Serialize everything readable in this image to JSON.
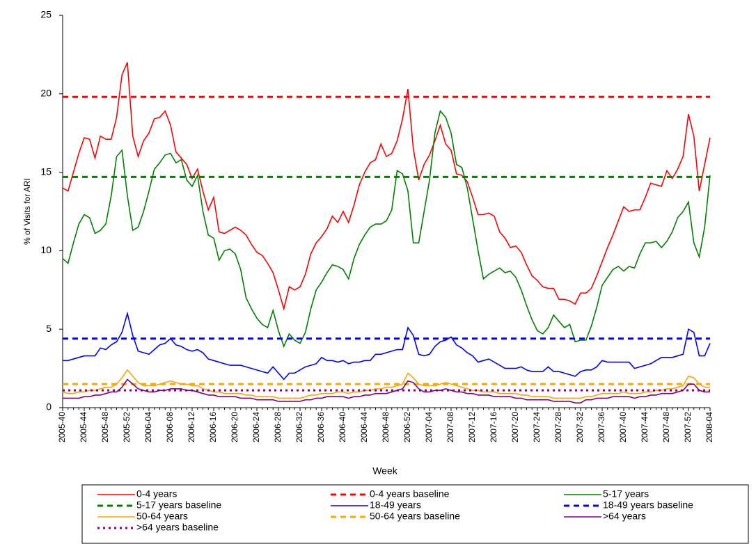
{
  "chart_data": {
    "type": "line",
    "y_label": "% of Visits for ARI",
    "x_label": "Week",
    "ylim": [
      0,
      25
    ],
    "yticks": [
      0,
      5,
      10,
      15,
      20,
      25
    ],
    "grid": false,
    "legend": "bottom",
    "categories": [
      "2005-40",
      null,
      null,
      null,
      "2005-44",
      null,
      null,
      null,
      "2005-48",
      null,
      null,
      null,
      "2005-52",
      null,
      null,
      null,
      "2006-04",
      null,
      null,
      null,
      "2006-08",
      null,
      null,
      null,
      "2006-12",
      null,
      null,
      null,
      "2006-16",
      null,
      null,
      null,
      "2006-20",
      null,
      null,
      null,
      "2006-24",
      null,
      null,
      null,
      "2006-28",
      null,
      null,
      null,
      "2006-32",
      null,
      null,
      null,
      "2006-36",
      null,
      null,
      null,
      "2006-40",
      null,
      null,
      null,
      "2006-44",
      null,
      null,
      null,
      "2006-48",
      null,
      null,
      null,
      "2006-52",
      null,
      null,
      null,
      "2007-04",
      null,
      null,
      null,
      "2007-08",
      null,
      null,
      null,
      "2007-12",
      null,
      null,
      null,
      "2007-16",
      null,
      null,
      null,
      "2007-20",
      null,
      null,
      null,
      "2007-24",
      null,
      null,
      null,
      "2007-28",
      null,
      null,
      null,
      "2007-32",
      null,
      null,
      null,
      "2007-36",
      null,
      null,
      null,
      "2007-40",
      null,
      null,
      null,
      "2007-44",
      null,
      null,
      null,
      "2007-48",
      null,
      null,
      null,
      "2007-52",
      null,
      null,
      null,
      "2008-04"
    ],
    "series": [
      {
        "name": "0-4 years",
        "color": "#ff0000",
        "style": "solid",
        "values": [
          14.0,
          13.8,
          15.0,
          16.2,
          17.2,
          17.1,
          15.9,
          17.3,
          17.1,
          17.1,
          18.5,
          21.2,
          22.0,
          17.3,
          16.0,
          17.0,
          17.5,
          18.4,
          18.5,
          18.9,
          18.0,
          16.3,
          15.9,
          15.5,
          14.6,
          15.2,
          13.8,
          12.6,
          13.4,
          11.2,
          11.1,
          11.3,
          11.5,
          11.3,
          11.0,
          10.4,
          9.9,
          9.7,
          9.2,
          8.6,
          7.5,
          6.3,
          7.7,
          7.5,
          7.7,
          8.5,
          9.8,
          10.5,
          10.9,
          11.4,
          12.2,
          11.8,
          12.5,
          11.8,
          12.9,
          14.2,
          15.0,
          15.6,
          15.8,
          16.8,
          16.0,
          16.2,
          17.0,
          18.4,
          20.3,
          16.5,
          14.5,
          15.5,
          16.1,
          17.0,
          18.0,
          16.8,
          16.4,
          14.9,
          14.8,
          14.4,
          13.4,
          12.3,
          12.3,
          12.4,
          12.2,
          11.2,
          10.8,
          10.2,
          10.3,
          9.9,
          9.1,
          8.4,
          8.1,
          7.7,
          7.6,
          7.6,
          6.9,
          6.9,
          6.8,
          6.6,
          7.3,
          7.3,
          7.6,
          8.4,
          9.3,
          10.2,
          11.0,
          11.9,
          12.8,
          12.5,
          12.6,
          12.6,
          13.4,
          14.3,
          14.2,
          14.1,
          15.1,
          14.6,
          15.2,
          16.0,
          18.7,
          17.3,
          13.8,
          15.5,
          17.2
        ]
      },
      {
        "name": "0-4 years baseline",
        "color": "#ff0000",
        "style": "dashed",
        "value": 19.8
      },
      {
        "name": "5-17 years",
        "color": "#008000",
        "style": "solid",
        "values": [
          9.5,
          9.2,
          10.5,
          11.7,
          12.3,
          12.1,
          11.1,
          11.3,
          11.7,
          13.5,
          16.0,
          16.4,
          13.5,
          11.3,
          11.5,
          12.5,
          13.8,
          15.2,
          15.6,
          16.1,
          16.2,
          15.6,
          15.8,
          14.5,
          14.1,
          14.8,
          12.5,
          11.0,
          10.8,
          9.4,
          10.0,
          10.1,
          9.8,
          8.8,
          7.0,
          6.3,
          5.7,
          5.3,
          5.1,
          6.2,
          4.9,
          3.9,
          4.7,
          4.3,
          4.1,
          4.8,
          6.3,
          7.5,
          8.0,
          8.6,
          9.1,
          9.0,
          8.8,
          8.2,
          9.5,
          10.4,
          11.0,
          11.5,
          11.7,
          11.7,
          11.9,
          12.6,
          15.1,
          14.9,
          13.8,
          10.5,
          10.5,
          12.5,
          14.5,
          17.5,
          18.9,
          18.5,
          17.5,
          15.5,
          15.3,
          14.0,
          12.0,
          10.0,
          8.2,
          8.5,
          8.7,
          8.9,
          8.6,
          8.7,
          8.3,
          7.5,
          6.5,
          5.6,
          4.9,
          4.7,
          5.1,
          5.9,
          5.5,
          5.1,
          5.3,
          4.2,
          4.3,
          4.3,
          5.2,
          6.4,
          7.8,
          8.3,
          8.8,
          9.0,
          8.7,
          9.0,
          8.9,
          9.8,
          10.5,
          10.5,
          10.6,
          10.2,
          10.6,
          11.2,
          12.1,
          12.5,
          13.1,
          10.5,
          9.6,
          11.5,
          14.8
        ]
      },
      {
        "name": "5-17 years baseline",
        "color": "#008000",
        "style": "dashed",
        "value": 14.7
      },
      {
        "name": "18-49 years",
        "color": "#0000ff",
        "style": "solid",
        "values": [
          3.0,
          3.0,
          3.1,
          3.2,
          3.3,
          3.3,
          3.3,
          3.8,
          3.7,
          4.0,
          4.2,
          4.8,
          6.0,
          4.6,
          3.6,
          3.5,
          3.4,
          3.7,
          4.0,
          4.1,
          4.4,
          4.0,
          3.9,
          3.7,
          3.6,
          3.7,
          3.5,
          3.1,
          3.0,
          2.9,
          2.8,
          2.7,
          2.7,
          2.7,
          2.6,
          2.5,
          2.4,
          2.3,
          2.2,
          2.6,
          2.2,
          1.8,
          2.2,
          2.2,
          2.4,
          2.6,
          2.7,
          2.8,
          3.2,
          3.0,
          3.0,
          2.9,
          3.0,
          2.8,
          2.9,
          2.9,
          3.0,
          3.0,
          3.4,
          3.4,
          3.5,
          3.6,
          3.7,
          3.7,
          5.1,
          4.6,
          3.4,
          3.3,
          3.4,
          3.9,
          4.2,
          4.3,
          4.5,
          4.0,
          3.8,
          3.5,
          3.3,
          2.9,
          3.0,
          3.1,
          2.9,
          2.7,
          2.5,
          2.5,
          2.5,
          2.6,
          2.4,
          2.3,
          2.3,
          2.3,
          2.6,
          2.3,
          2.3,
          2.2,
          2.1,
          2.0,
          2.3,
          2.4,
          2.4,
          2.6,
          3.0,
          2.9,
          2.9,
          2.9,
          2.9,
          2.9,
          2.5,
          2.6,
          2.7,
          2.8,
          3.0,
          3.2,
          3.2,
          3.2,
          3.3,
          3.4,
          5.0,
          4.8,
          3.3,
          3.3,
          4.1
        ]
      },
      {
        "name": "18-49 years baseline",
        "color": "#0000ff",
        "style": "dashed",
        "value": 4.4
      },
      {
        "name": "50-64 years",
        "color": "#ffa500",
        "style": "solid",
        "values": [
          1.0,
          0.9,
          0.9,
          1.0,
          1.0,
          1.1,
          1.1,
          1.2,
          1.3,
          1.3,
          1.5,
          1.9,
          2.4,
          2.0,
          1.6,
          1.4,
          1.4,
          1.4,
          1.5,
          1.6,
          1.7,
          1.6,
          1.5,
          1.5,
          1.4,
          1.4,
          1.2,
          1.1,
          1.0,
          1.0,
          0.9,
          0.9,
          0.9,
          0.9,
          0.8,
          0.8,
          0.7,
          0.7,
          0.7,
          0.7,
          0.6,
          0.6,
          0.6,
          0.6,
          0.6,
          0.7,
          0.8,
          0.8,
          0.9,
          0.9,
          0.9,
          1.0,
          1.0,
          0.9,
          1.0,
          1.0,
          1.1,
          1.1,
          1.2,
          1.2,
          1.3,
          1.3,
          1.4,
          1.5,
          2.2,
          1.9,
          1.5,
          1.4,
          1.4,
          1.4,
          1.5,
          1.6,
          1.5,
          1.4,
          1.3,
          1.2,
          1.1,
          1.1,
          1.0,
          1.0,
          1.0,
          0.9,
          0.9,
          0.9,
          0.9,
          0.8,
          0.8,
          0.7,
          0.7,
          0.7,
          0.7,
          0.6,
          0.6,
          0.6,
          0.6,
          0.6,
          0.6,
          0.7,
          0.7,
          0.8,
          0.9,
          0.9,
          0.9,
          0.9,
          1.0,
          0.9,
          0.9,
          0.9,
          1.0,
          1.0,
          1.1,
          1.1,
          1.2,
          1.2,
          1.3,
          1.4,
          2.0,
          1.9,
          1.5,
          1.3,
          1.3
        ]
      },
      {
        "name": "50-64 years baseline",
        "color": "#ffa500",
        "style": "dashed",
        "value": 1.5
      },
      {
        "name": ">64 years",
        "color": "#800080",
        "style": "solid",
        "values": [
          0.6,
          0.6,
          0.6,
          0.6,
          0.7,
          0.7,
          0.8,
          0.8,
          0.9,
          1.0,
          1.0,
          1.3,
          1.8,
          1.5,
          1.2,
          1.1,
          1.0,
          1.0,
          1.1,
          1.1,
          1.2,
          1.2,
          1.2,
          1.1,
          1.1,
          1.0,
          0.9,
          0.8,
          0.8,
          0.7,
          0.7,
          0.7,
          0.7,
          0.6,
          0.6,
          0.6,
          0.5,
          0.5,
          0.5,
          0.5,
          0.4,
          0.4,
          0.4,
          0.4,
          0.4,
          0.5,
          0.5,
          0.6,
          0.6,
          0.7,
          0.7,
          0.7,
          0.7,
          0.6,
          0.7,
          0.7,
          0.8,
          0.8,
          0.9,
          0.9,
          0.9,
          1.0,
          1.1,
          1.2,
          1.7,
          1.6,
          1.2,
          1.0,
          1.0,
          1.1,
          1.1,
          1.2,
          1.1,
          1.0,
          1.0,
          0.9,
          0.9,
          0.8,
          0.8,
          0.8,
          0.7,
          0.7,
          0.7,
          0.7,
          0.6,
          0.6,
          0.5,
          0.5,
          0.5,
          0.5,
          0.5,
          0.4,
          0.4,
          0.4,
          0.4,
          0.3,
          0.3,
          0.5,
          0.5,
          0.6,
          0.6,
          0.6,
          0.7,
          0.7,
          0.7,
          0.7,
          0.6,
          0.7,
          0.7,
          0.8,
          0.8,
          0.9,
          0.9,
          0.9,
          1.0,
          1.1,
          1.5,
          1.5,
          1.1,
          1.0,
          1.0
        ]
      },
      {
        "name": ">64 years baseline",
        "color": "#800080",
        "style": "dotted",
        "value": 1.1
      }
    ]
  }
}
